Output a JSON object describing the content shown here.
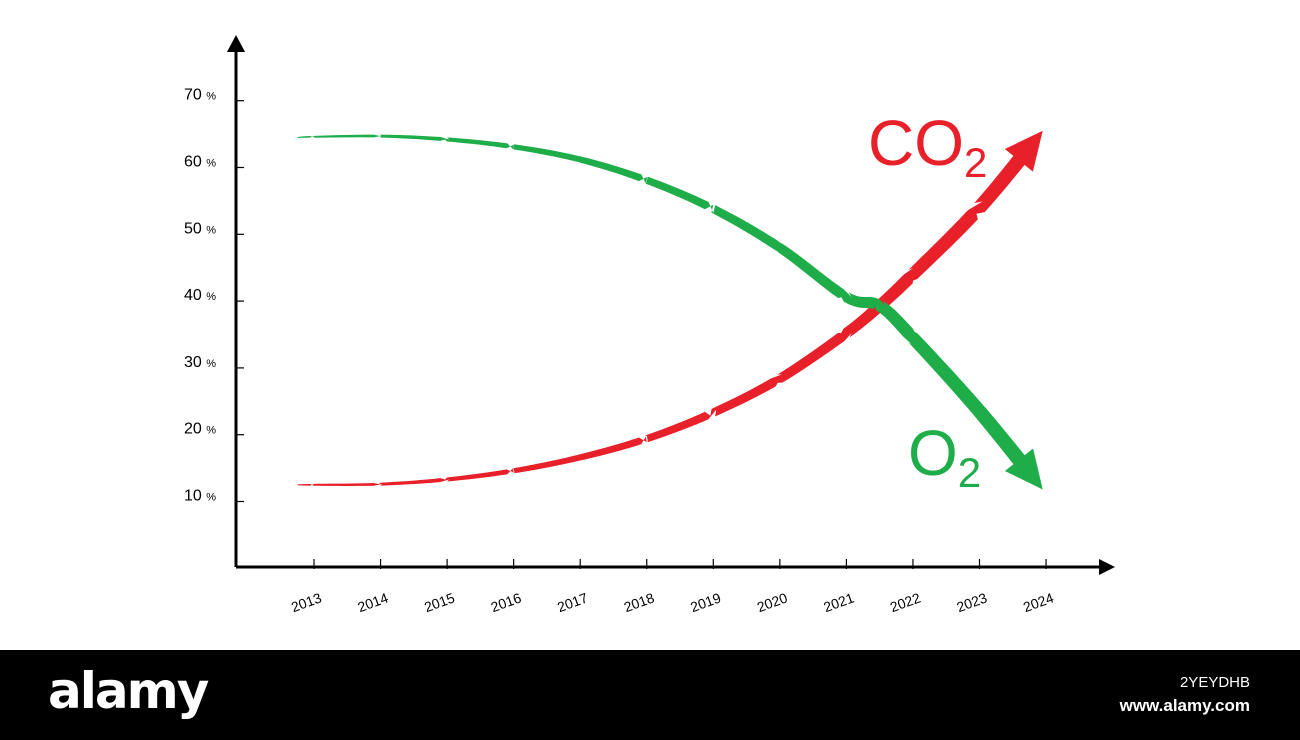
{
  "chart_data": {
    "type": "line",
    "title": "",
    "xlabel": "",
    "ylabel": "",
    "categories": [
      "2013",
      "2014",
      "2015",
      "2016",
      "2017",
      "2018",
      "2019",
      "2020",
      "2021",
      "2022",
      "2023",
      "2024"
    ],
    "x": [
      2013,
      2014,
      2015,
      2016,
      2017,
      2018,
      2019,
      2020,
      2021,
      2022,
      2023,
      2024
    ],
    "y_ticks": [
      10,
      20,
      30,
      40,
      50,
      60,
      70
    ],
    "y_tick_suffix": "%",
    "ylim": [
      0,
      78
    ],
    "xlim": [
      2011.8,
      2025
    ],
    "grid": false,
    "legend": "none",
    "series": [
      {
        "name": "CO2",
        "label_main": "CO",
        "label_sub": "2",
        "color": "#e8202a",
        "x": [
          2012.75,
          2013,
          2014,
          2015,
          2016,
          2017,
          2018,
          2019,
          2020,
          2021,
          2021.5,
          2022,
          2023,
          2023.95
        ],
        "values": [
          12.5,
          12.5,
          12.6,
          13.3,
          14.6,
          16.6,
          19.4,
          23.3,
          28.4,
          35.2,
          39.3,
          44.0,
          54.0,
          65.5
        ]
      },
      {
        "name": "O2",
        "label_main": "O",
        "label_sub": "2",
        "color": "#1fad4a",
        "x": [
          2012.75,
          2013,
          2014,
          2015,
          2016,
          2017,
          2018,
          2019,
          2020,
          2021,
          2021.5,
          2022,
          2023,
          2023.95
        ],
        "values": [
          64.5,
          64.6,
          64.7,
          64.2,
          63.1,
          61.2,
          58.1,
          53.8,
          48.0,
          40.6,
          39.3,
          34.5,
          23.5,
          11.8
        ]
      }
    ]
  },
  "footer": {
    "brand": "alamy",
    "image_id": "2YEYDHB",
    "url": "www.alamy.com"
  }
}
